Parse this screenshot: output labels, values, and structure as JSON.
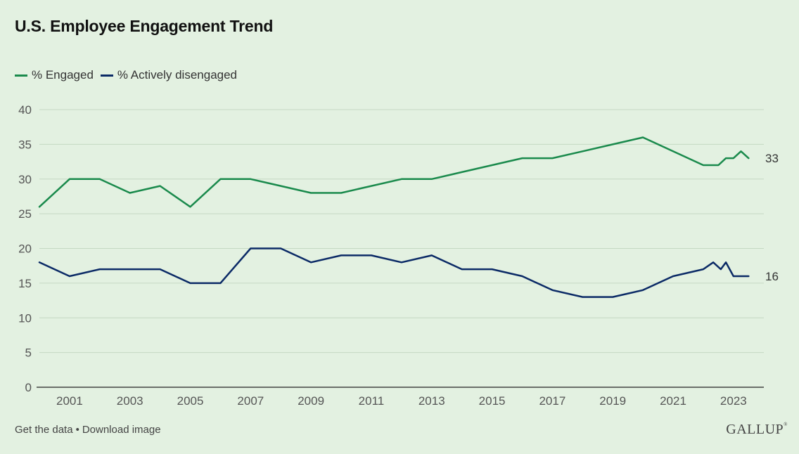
{
  "title": "U.S. Employee Engagement Trend",
  "legend": [
    {
      "label": "% Engaged",
      "color": "#1a8a4c"
    },
    {
      "label": "% Actively disengaged",
      "color": "#0b2a66"
    }
  ],
  "footer": {
    "get_data": "Get the data",
    "separator": "•",
    "download": "Download image"
  },
  "logo": "GALLUP",
  "chart_data": {
    "type": "line",
    "ylim": [
      0,
      40
    ],
    "yticks": [
      0,
      5,
      10,
      15,
      20,
      25,
      30,
      35,
      40
    ],
    "xlim": [
      2000,
      2023.75
    ],
    "xticks": [
      "2001",
      "2003",
      "2005",
      "2007",
      "2009",
      "2011",
      "2013",
      "2015",
      "2017",
      "2019",
      "2021",
      "2023"
    ],
    "grid": true,
    "legend_placement": "top-left",
    "series": [
      {
        "name": "% Engaged",
        "color": "#1a8a4c",
        "end_label": "33",
        "x": [
          2000,
          2001,
          2002,
          2003,
          2004,
          2005,
          2006,
          2007,
          2008,
          2009,
          2010,
          2011,
          2012,
          2013,
          2014,
          2015,
          2016,
          2017,
          2018,
          2019,
          2020,
          2021,
          2022,
          2022.5,
          2022.75,
          2023,
          2023.25,
          2023.5
        ],
        "values": [
          26,
          30,
          30,
          28,
          29,
          26,
          30,
          30,
          29,
          28,
          28,
          29,
          30,
          30,
          31,
          32,
          33,
          33,
          34,
          35,
          36,
          34,
          32,
          32,
          33,
          33,
          34,
          33
        ]
      },
      {
        "name": "% Actively disengaged",
        "color": "#0b2a66",
        "end_label": "16",
        "x": [
          2000,
          2001,
          2002,
          2003,
          2004,
          2005,
          2006,
          2007,
          2008,
          2009,
          2010,
          2011,
          2012,
          2013,
          2014,
          2015,
          2016,
          2017,
          2018,
          2019,
          2020,
          2021,
          2022,
          2022.33,
          2022.58,
          2022.75,
          2023,
          2023.5
        ],
        "values": [
          18,
          16,
          17,
          17,
          17,
          15,
          15,
          20,
          20,
          18,
          19,
          19,
          18,
          19,
          17,
          17,
          16,
          14,
          13,
          13,
          14,
          16,
          17,
          18,
          17,
          18,
          16,
          16
        ]
      }
    ]
  }
}
